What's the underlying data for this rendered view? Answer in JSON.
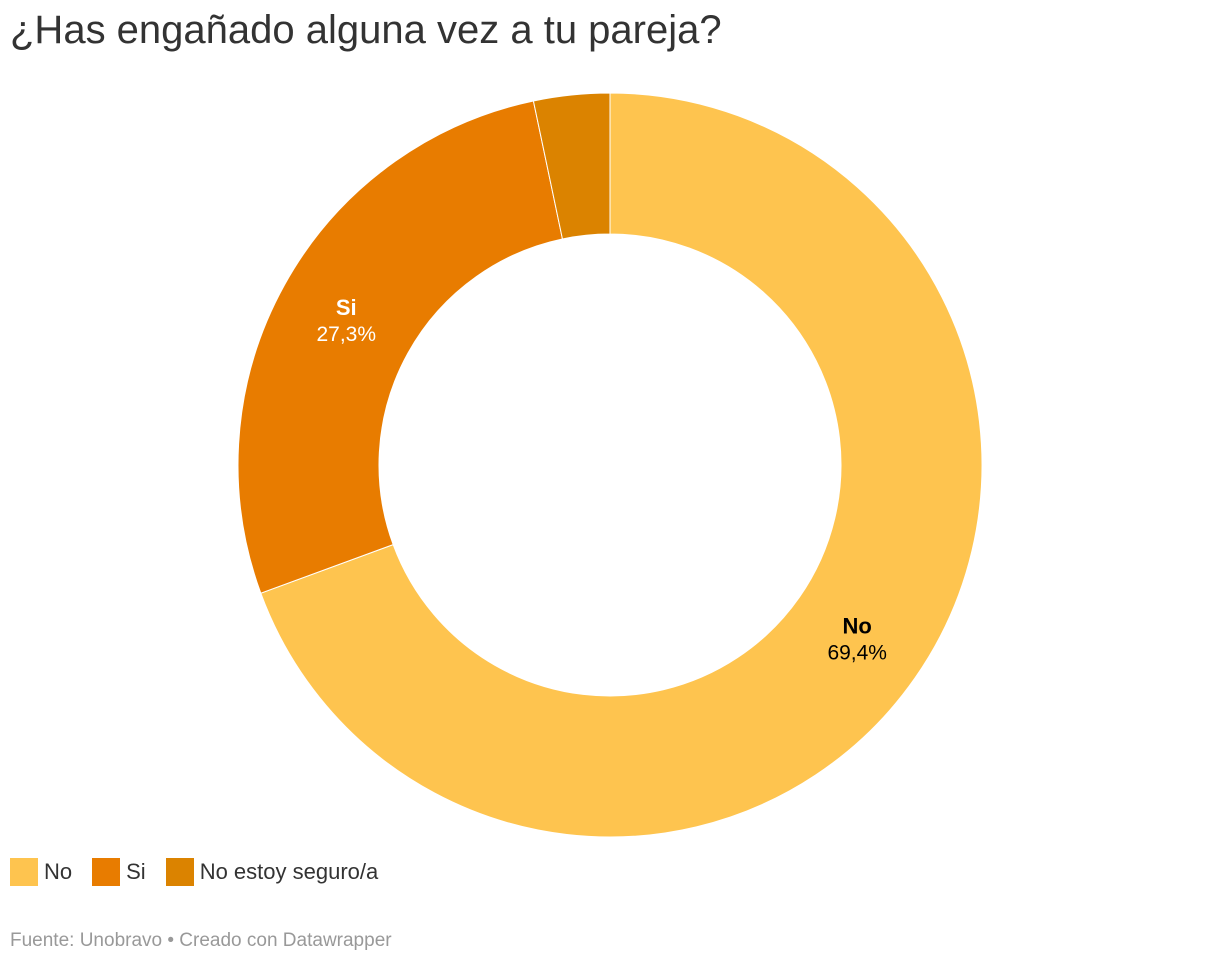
{
  "title": "¿Has engañado alguna vez a tu pareja?",
  "chart_data": {
    "type": "pie",
    "subtype": "donut",
    "title": "¿Has engañado alguna vez a tu pareja?",
    "categories": [
      "No",
      "Si",
      "No estoy seguro/a"
    ],
    "values": [
      69.4,
      27.3,
      3.3
    ],
    "value_labels": [
      "69,4%",
      "27,3%",
      ""
    ],
    "colors": [
      "#fec44f",
      "#e87c00",
      "#db8300"
    ],
    "label_colors": [
      "#000000",
      "#ffffff",
      "#ffffff"
    ],
    "legend_position": "bottom-left"
  },
  "legend": {
    "items": [
      {
        "label": "No",
        "color": "#fec44f"
      },
      {
        "label": "Si",
        "color": "#e87c00"
      },
      {
        "label": "No estoy seguro/a",
        "color": "#db8300"
      }
    ]
  },
  "footer": {
    "text": "Fuente: Unobravo • Creado con Datawrapper"
  }
}
